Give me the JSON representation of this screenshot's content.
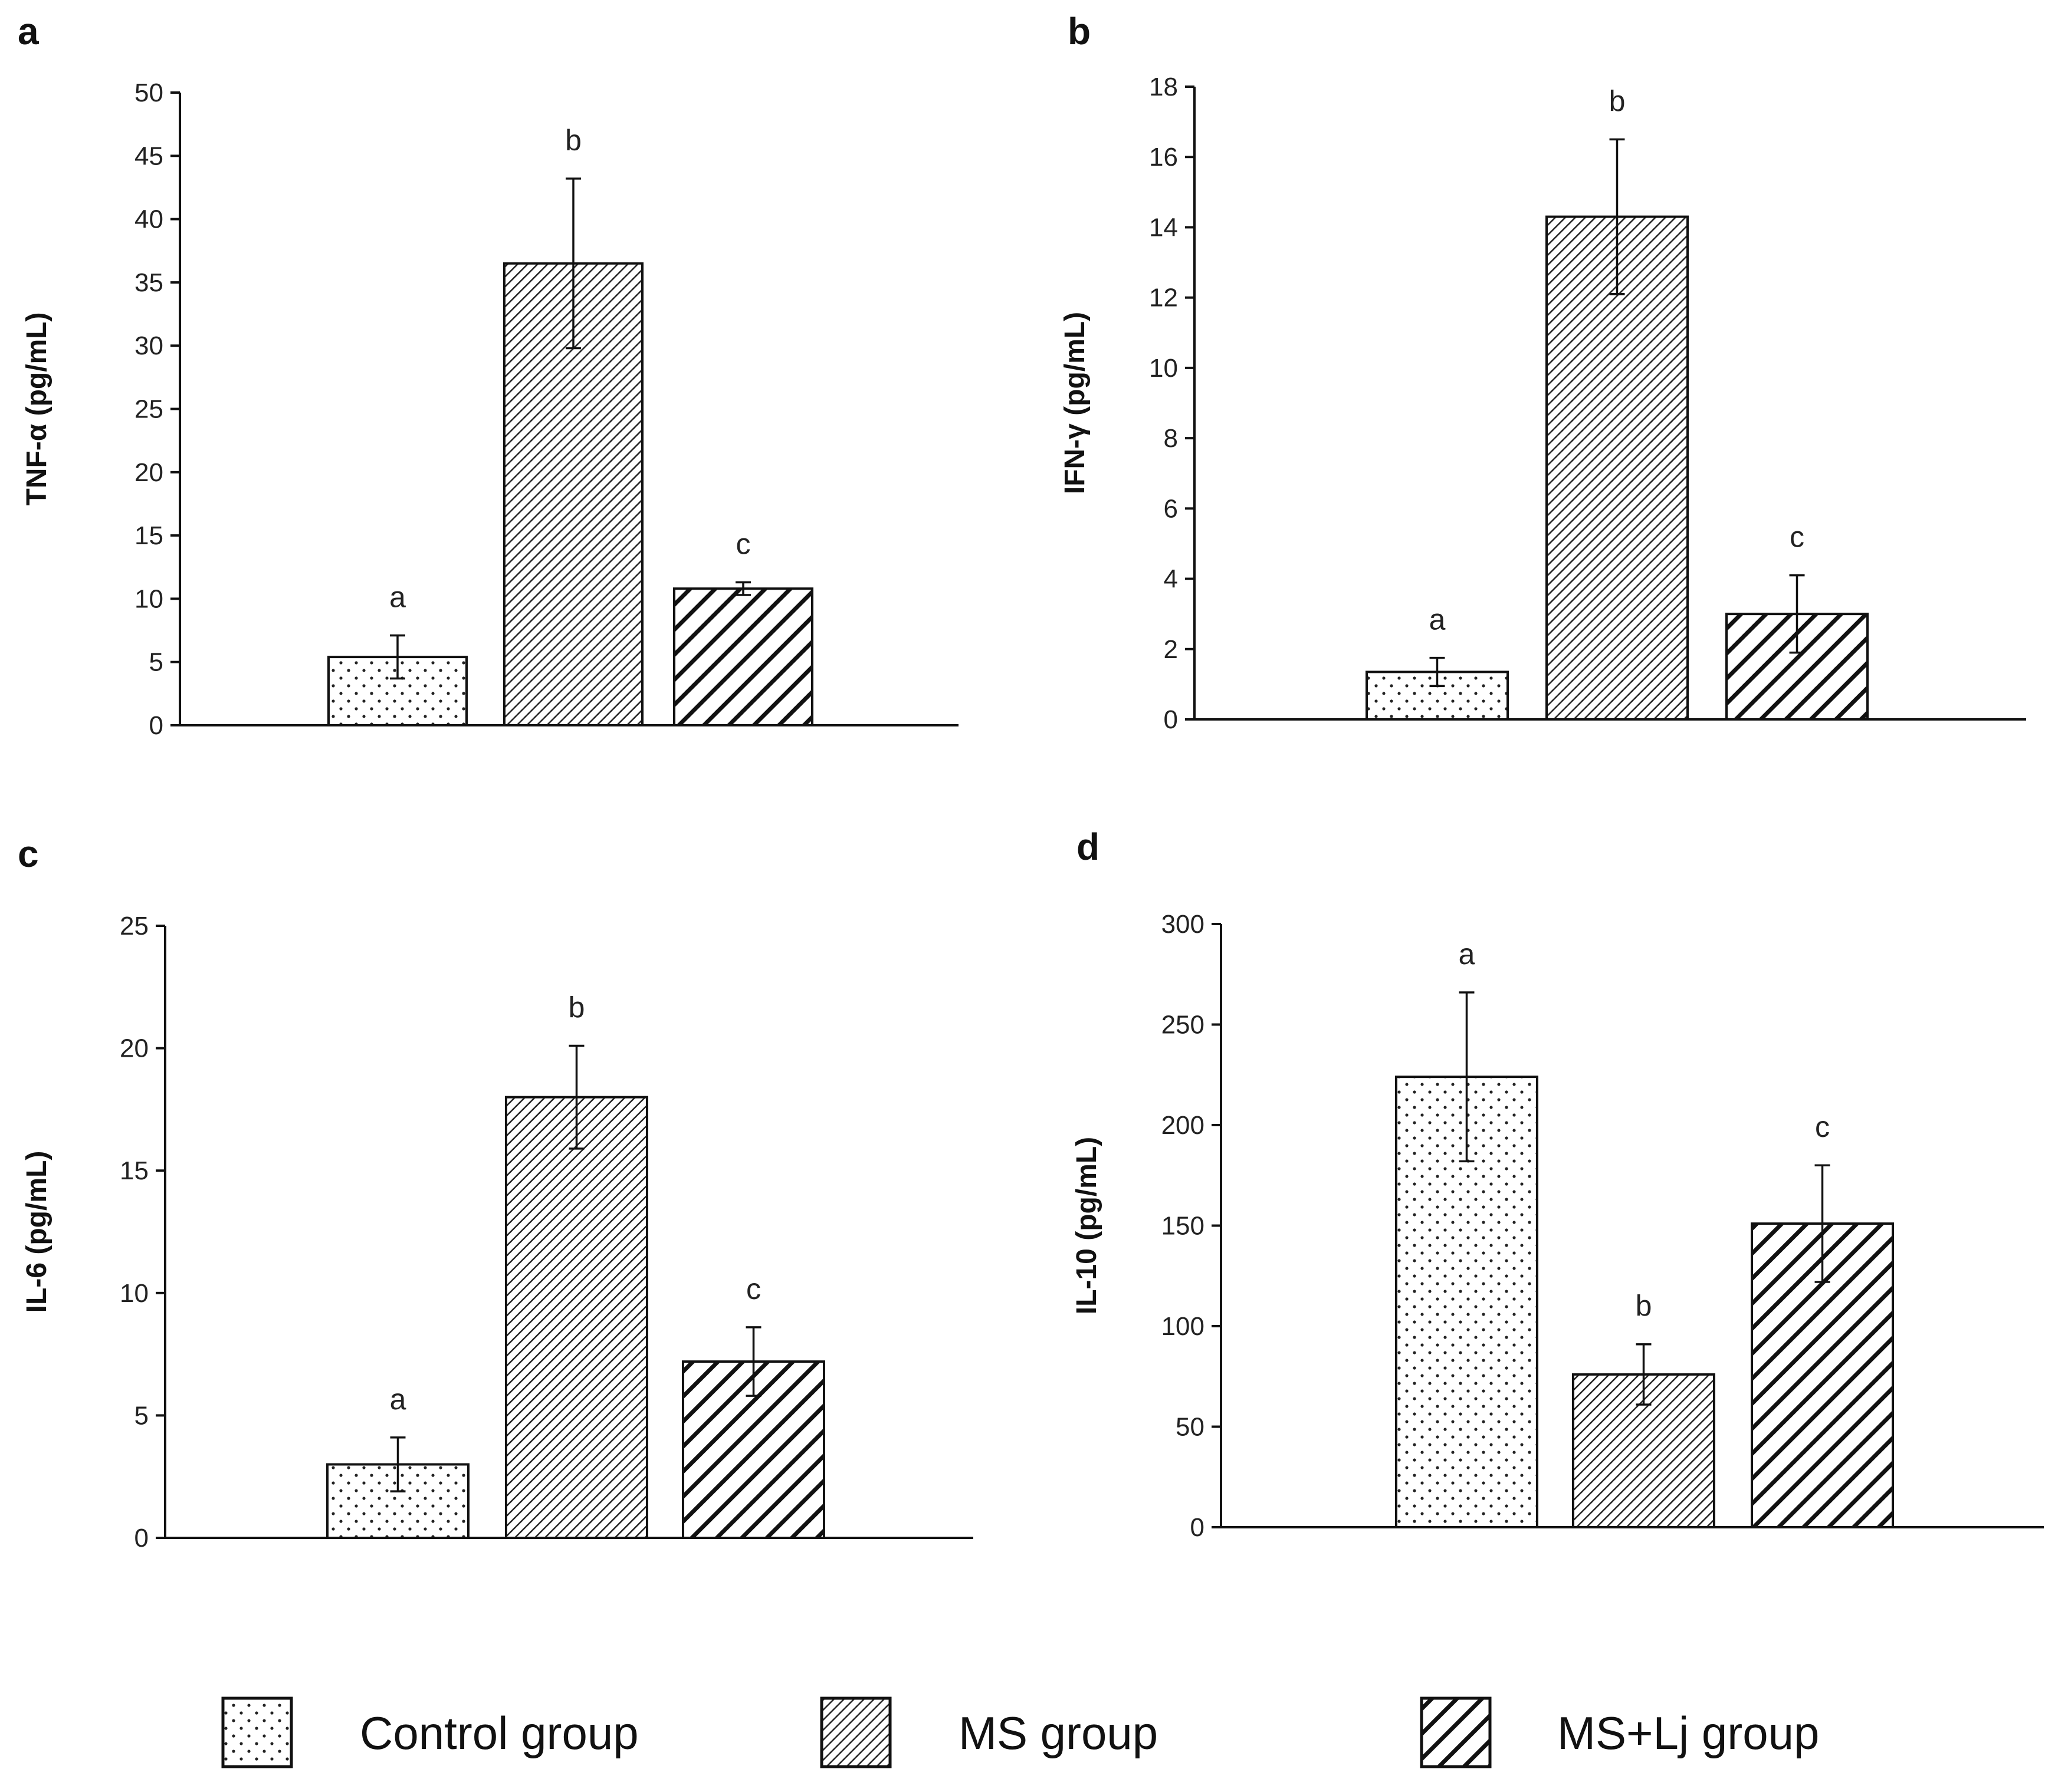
{
  "legend": [
    {
      "name": "Control group",
      "pattern": "dots"
    },
    {
      "name": "MS group",
      "pattern": "fine-hatch"
    },
    {
      "name": "MS+Lj group",
      "pattern": "bold-hatch"
    }
  ],
  "chart_data": [
    {
      "panel": "a",
      "type": "bar",
      "ylabel": "TNF-α (pg/mL)",
      "ylim": [
        0,
        50
      ],
      "yticks": [
        0,
        5,
        10,
        15,
        20,
        25,
        30,
        35,
        40,
        45,
        50
      ],
      "categories": [
        "Control group",
        "MS group",
        "MS+Lj group"
      ],
      "values": [
        5.4,
        36.5,
        10.8
      ],
      "errors": [
        1.7,
        6.7,
        0.5
      ],
      "significance": [
        "a",
        "b",
        "c"
      ]
    },
    {
      "panel": "b",
      "type": "bar",
      "ylabel": "IFN-γ (pg/mL)",
      "ylim": [
        0,
        18
      ],
      "yticks": [
        0,
        2,
        4,
        6,
        8,
        10,
        12,
        14,
        16,
        18
      ],
      "categories": [
        "Control group",
        "MS group",
        "MS+Lj group"
      ],
      "values": [
        1.35,
        14.3,
        3.0
      ],
      "errors": [
        0.4,
        2.2,
        1.1
      ],
      "significance": [
        "a",
        "b",
        "c"
      ]
    },
    {
      "panel": "c",
      "type": "bar",
      "ylabel": "IL-6 (pg/mL)",
      "ylim": [
        0,
        25
      ],
      "yticks": [
        0,
        5,
        10,
        15,
        20,
        25
      ],
      "categories": [
        "Control group",
        "MS group",
        "MS+Lj group"
      ],
      "values": [
        3.0,
        18.0,
        7.2
      ],
      "errors": [
        1.1,
        2.1,
        1.4
      ],
      "significance": [
        "a",
        "b",
        "c"
      ]
    },
    {
      "panel": "d",
      "type": "bar",
      "ylabel": "IL-10 (pg/mL)",
      "ylim": [
        0,
        300
      ],
      "yticks": [
        0,
        50,
        100,
        150,
        200,
        250,
        300
      ],
      "categories": [
        "Control group",
        "MS group",
        "MS+Lj group"
      ],
      "values": [
        224,
        76,
        151
      ],
      "errors": [
        42,
        15,
        29
      ],
      "significance": [
        "a",
        "b",
        "c"
      ]
    }
  ]
}
